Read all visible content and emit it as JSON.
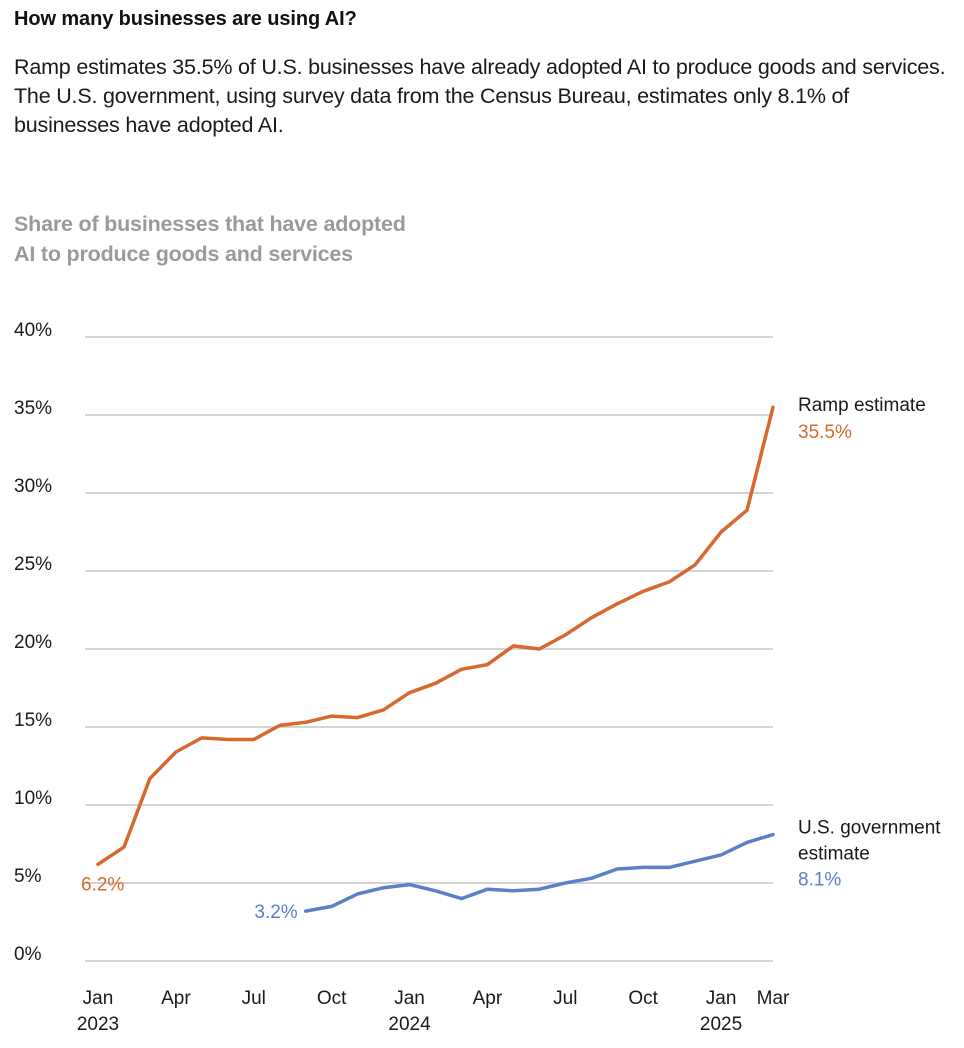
{
  "headline": "How many businesses are using AI?",
  "description": "Ramp estimates 35.5% of U.S. businesses have already adopted AI to produce goods and services. The U.S. government, using survey data from the Census Bureau, estimates only 8.1% of businesses have adopted AI.",
  "colors": {
    "ramp": "#d6692f",
    "government": "#5b7fc8",
    "grid": "#d3d3d3",
    "axis_text": "#1a1a1a",
    "title_gray": "#9a9a9a"
  },
  "chart_data": {
    "type": "line",
    "title_lines": [
      "Share of businesses that have adopted",
      "AI to produce goods and services"
    ],
    "ylim": [
      0,
      40
    ],
    "y_ticks": [
      0,
      5,
      10,
      15,
      20,
      25,
      30,
      35,
      40
    ],
    "y_tick_labels": [
      "0%",
      "5%",
      "10%",
      "15%",
      "20%",
      "25%",
      "30%",
      "35%",
      "40%"
    ],
    "x_start": "2023-01",
    "x_end": "2025-03",
    "x_ticks": [
      {
        "month_index": 0,
        "label": "Jan",
        "year": "2023"
      },
      {
        "month_index": 3,
        "label": "Apr",
        "year": ""
      },
      {
        "month_index": 6,
        "label": "Jul",
        "year": ""
      },
      {
        "month_index": 9,
        "label": "Oct",
        "year": ""
      },
      {
        "month_index": 12,
        "label": "Jan",
        "year": "2024"
      },
      {
        "month_index": 15,
        "label": "Apr",
        "year": ""
      },
      {
        "month_index": 18,
        "label": "Jul",
        "year": ""
      },
      {
        "month_index": 21,
        "label": "Oct",
        "year": ""
      },
      {
        "month_index": 24,
        "label": "Jan",
        "year": "2025"
      },
      {
        "month_index": 26,
        "label": "Mar",
        "year": ""
      }
    ],
    "series": [
      {
        "name": "Ramp estimate",
        "name_lines": [
          "Ramp estimate"
        ],
        "color_key": "ramp",
        "start_month_index": 0,
        "values": [
          6.2,
          7.3,
          11.7,
          13.4,
          14.3,
          14.2,
          14.2,
          15.1,
          15.3,
          15.7,
          15.6,
          16.1,
          17.2,
          17.8,
          18.7,
          19.0,
          20.2,
          20.0,
          20.9,
          22.0,
          22.9,
          23.7,
          24.3,
          25.4,
          27.5,
          28.9,
          35.5
        ],
        "start_label": "6.2%",
        "end_label": "35.5%"
      },
      {
        "name": "U.S. government estimate",
        "name_lines": [
          "U.S. government",
          "estimate"
        ],
        "color_key": "government",
        "start_month_index": 8,
        "values": [
          3.2,
          3.5,
          4.3,
          4.7,
          4.9,
          4.5,
          4.0,
          4.6,
          4.5,
          4.6,
          5.0,
          5.3,
          5.9,
          6.0,
          6.0,
          6.4,
          6.8,
          7.6,
          8.1
        ],
        "start_label": "3.2%",
        "end_label": "8.1%"
      }
    ]
  }
}
